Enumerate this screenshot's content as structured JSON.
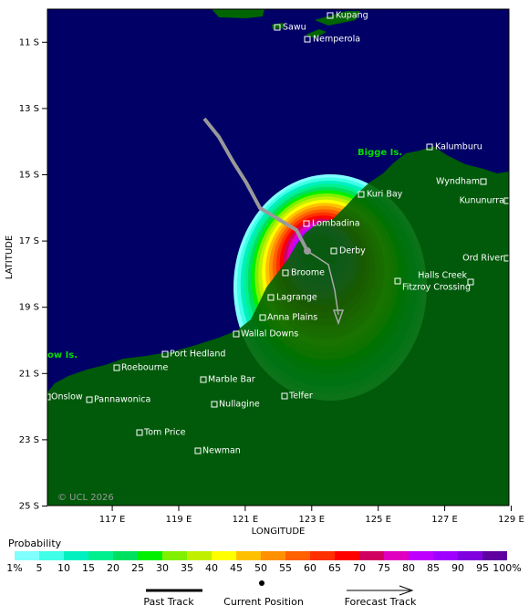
{
  "map": {
    "xticks": [
      {
        "value": 117,
        "label": "117 E"
      },
      {
        "value": 119,
        "label": "119 E"
      },
      {
        "value": 121,
        "label": "121 E"
      },
      {
        "value": 123,
        "label": "123 E"
      },
      {
        "value": 125,
        "label": "125 E"
      },
      {
        "value": 127,
        "label": "127 E"
      },
      {
        "value": 129,
        "label": "129 E"
      }
    ],
    "yticks": [
      {
        "value": -11,
        "label": "11 S"
      },
      {
        "value": -13,
        "label": "13 S"
      },
      {
        "value": -15,
        "label": "15 S"
      },
      {
        "value": -17,
        "label": "17 S"
      },
      {
        "value": -19,
        "label": "19 S"
      },
      {
        "value": -21,
        "label": "21 S"
      },
      {
        "value": -23,
        "label": "23 S"
      },
      {
        "value": -25,
        "label": "25 S"
      }
    ],
    "x_label": "LONGITUDE",
    "y_label": "LATITUDE",
    "places": [
      "Kupang",
      "Sawu",
      "Nemperola",
      "Kalumburu",
      "Wyndham",
      "Kununurra",
      "Kuri Bay",
      "Lombadina",
      "Derby",
      "Broome",
      "Ord River",
      "Halls Creek",
      "Fitzroy Crossing",
      "Lagrange",
      "Anna Plains",
      "Wallal Downs",
      "Port Hedland",
      "Roebourne",
      "Onslow",
      "Pannawonica",
      "Marble Bar",
      "Telfer",
      "Nullagine",
      "Tom Price",
      "Newman"
    ],
    "islands": [
      "Bigge Is.",
      "ow Is."
    ],
    "copyright": "© UCL 2026"
  },
  "colorbar": {
    "title": "Probability",
    "ticks": [
      {
        "value": 1,
        "label": "1%"
      },
      5,
      10,
      15,
      20,
      25,
      30,
      35,
      40,
      45,
      50,
      55,
      60,
      65,
      70,
      75,
      80,
      85,
      90,
      95,
      {
        "value": 100,
        "label": "100%"
      }
    ],
    "colors": [
      "#80ffff",
      "#40ffe8",
      "#00f0c0",
      "#00f090",
      "#00e060",
      "#00f000",
      "#80f000",
      "#c0f000",
      "#ffff00",
      "#ffc000",
      "#ff9000",
      "#ff6000",
      "#ff3000",
      "#ff0000",
      "#d00060",
      "#e000c0",
      "#c000ff",
      "#a000ff",
      "#8000e0",
      "#6000a0"
    ]
  },
  "legend": {
    "past": "Past Track",
    "current": "Current Position",
    "forecast": "Forecast Track"
  }
}
